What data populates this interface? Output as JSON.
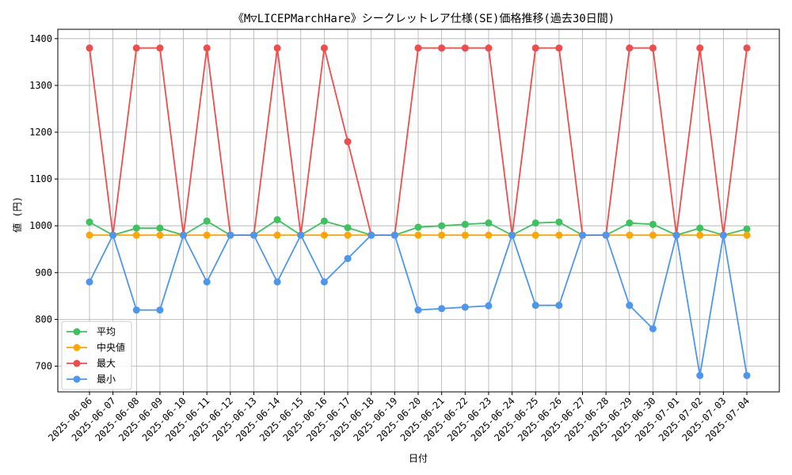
{
  "chart_data": {
    "type": "line",
    "title": "《M▽LICEPMarchHare》シークレットレア仕様(SE)価格推移(過去30日間)",
    "xlabel": "日付",
    "ylabel": "値 (円)",
    "ylim": [
      645,
      1420
    ],
    "yticks": [
      700,
      800,
      900,
      1000,
      1100,
      1200,
      1300,
      1400
    ],
    "grid": true,
    "legend_position": "lower-left",
    "categories": [
      "2025-06-06",
      "2025-06-07",
      "2025-06-08",
      "2025-06-09",
      "2025-06-10",
      "2025-06-11",
      "2025-06-12",
      "2025-06-13",
      "2025-06-14",
      "2025-06-15",
      "2025-06-16",
      "2025-06-17",
      "2025-06-18",
      "2025-06-19",
      "2025-06-20",
      "2025-06-21",
      "2025-06-22",
      "2025-06-23",
      "2025-06-24",
      "2025-06-25",
      "2025-06-26",
      "2025-06-27",
      "2025-06-28",
      "2025-06-29",
      "2025-06-30",
      "2025-07-01",
      "2025-07-02",
      "2025-07-03",
      "2025-07-04"
    ],
    "series": [
      {
        "name": "平均",
        "color": "#3cc25f",
        "values": [
          1008,
          980,
          995,
          995,
          980,
          1010,
          980,
          980,
          1013,
          980,
          1010,
          996,
          980,
          980,
          997,
          1000,
          1003,
          1006,
          980,
          1006,
          1008,
          980,
          980,
          1006,
          1003,
          980,
          995,
          980,
          993
        ]
      },
      {
        "name": "中央値",
        "color": "#ffa500",
        "values": [
          980,
          980,
          980,
          980,
          980,
          980,
          980,
          980,
          980,
          980,
          980,
          980,
          980,
          980,
          980,
          980,
          980,
          980,
          980,
          980,
          980,
          980,
          980,
          980,
          980,
          980,
          980,
          980,
          980
        ]
      },
      {
        "name": "最大",
        "color": "#f04c4c",
        "values": [
          1380,
          980,
          1380,
          1380,
          980,
          1380,
          980,
          980,
          1380,
          980,
          1380,
          1180,
          980,
          980,
          1380,
          1380,
          1380,
          1380,
          980,
          1380,
          1380,
          980,
          980,
          1380,
          1380,
          980,
          1380,
          980,
          1380
        ]
      },
      {
        "name": "最小",
        "color": "#4c96f0",
        "values": [
          880,
          980,
          820,
          820,
          980,
          880,
          980,
          980,
          880,
          980,
          880,
          930,
          980,
          980,
          820,
          823,
          826,
          829,
          980,
          830,
          830,
          980,
          980,
          830,
          780,
          980,
          680,
          980,
          680
        ]
      }
    ]
  }
}
